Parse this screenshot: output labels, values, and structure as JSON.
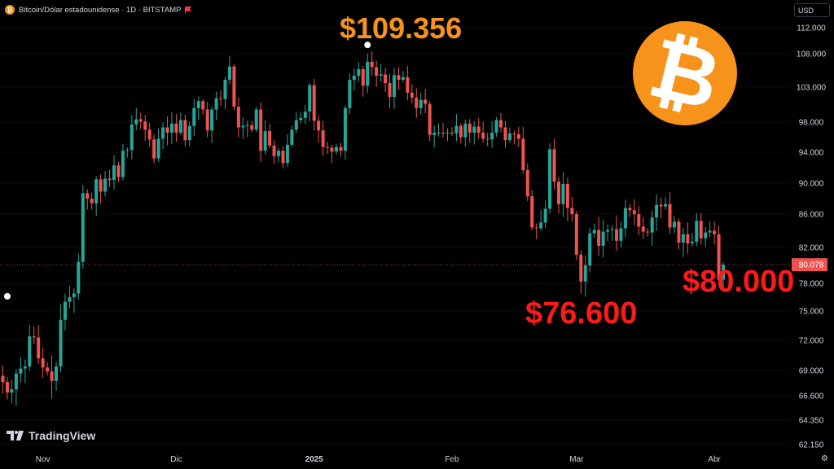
{
  "header": {
    "title": "Bitcoin/Dólar estadounidense · 1D · BITSTAMP",
    "logo_glyph": "₿",
    "flag_color": "#f23645"
  },
  "currency_button": {
    "label": "USD"
  },
  "branding": {
    "tradingview": "TradingView"
  },
  "annotations": {
    "high_label": "$109.356",
    "high_color": "#f7931a",
    "low_label": "$76.600",
    "low_color": "#ff1a1a",
    "current_label": "$80.000",
    "current_color": "#ff1a1a"
  },
  "bitcoin_logo": {
    "glyph": "₿",
    "color": "#f7931a"
  },
  "chart_data": {
    "type": "candlestick",
    "symbol": "BTCUSD",
    "interval": "1D",
    "exchange": "BITSTAMP",
    "ylim": [
      61500,
      114500
    ],
    "y_ticks": [
      62150,
      64350,
      66600,
      69000,
      72000,
      75000,
      78000,
      82000,
      86000,
      90000,
      94000,
      98000,
      103000,
      108000,
      112000
    ],
    "y_tick_labels": [
      "62.150",
      "64.350",
      "66.600",
      "69.000",
      "72.000",
      "75.000",
      "78.000",
      "82.000",
      "86.000",
      "90.000",
      "94.000",
      "98.000",
      "103.000",
      "108.000",
      "112.000"
    ],
    "x_labels": [
      {
        "label": "Nov",
        "index": 9
      },
      {
        "label": "Dic",
        "index": 39
      },
      {
        "label": "2025",
        "index": 70
      },
      {
        "label": "Feb",
        "index": 101
      },
      {
        "label": "Mar",
        "index": 129
      },
      {
        "label": "Abr",
        "index": 160
      }
    ],
    "last_price": 80078,
    "last_price_label": "80.078",
    "up_color": "#26a69a",
    "down_color": "#ef5350",
    "closes": [
      67900,
      66900,
      67200,
      68700,
      69200,
      69400,
      72400,
      72300,
      70200,
      69300,
      68900,
      68000,
      69400,
      74100,
      76000,
      76500,
      76900,
      80400,
      88700,
      88000,
      87400,
      90500,
      88900,
      90600,
      90400,
      92300,
      90800,
      94200,
      94300,
      97700,
      98400,
      98100,
      97000,
      95700,
      93200,
      95800,
      97300,
      96600,
      97800,
      96600,
      98300,
      95600,
      97500,
      100000,
      101000,
      99800,
      96900,
      99800,
      101400,
      101300,
      104100,
      106100,
      100200,
      97300,
      97500,
      97600,
      97000,
      99800,
      94200,
      96800,
      94900,
      93500,
      94200,
      92600,
      95000,
      97000,
      98300,
      98600,
      99500,
      103300,
      98200,
      96900,
      94700,
      94600,
      94100,
      94700,
      94200,
      100000,
      104100,
      104700,
      105700,
      103200,
      106800,
      106000,
      104700,
      104900,
      103600,
      101600,
      104800,
      104100,
      104500,
      102200,
      101500,
      100000,
      101200,
      100600,
      96300,
      96600,
      96600,
      96500,
      96600,
      96500,
      97500,
      96000,
      97800,
      96600,
      97400,
      96600,
      95800,
      95700,
      96600,
      98300,
      97300,
      95600,
      96500,
      96400,
      95800,
      91700,
      88300,
      84400,
      84300,
      85000,
      86700,
      94400,
      90200,
      87300,
      89900,
      86800,
      86000,
      81200,
      78200,
      80000,
      83700,
      84100,
      82200,
      83900,
      84100,
      84200,
      82800,
      84300,
      86800,
      86500,
      86000,
      84500,
      83900,
      83800,
      85600,
      87200,
      87000,
      87300,
      84400,
      85100,
      82600,
      83600,
      82500,
      82700,
      85200,
      83100,
      83800,
      84000,
      83600,
      78400,
      80078
    ],
    "period_high": 109356,
    "period_low": 76600
  }
}
